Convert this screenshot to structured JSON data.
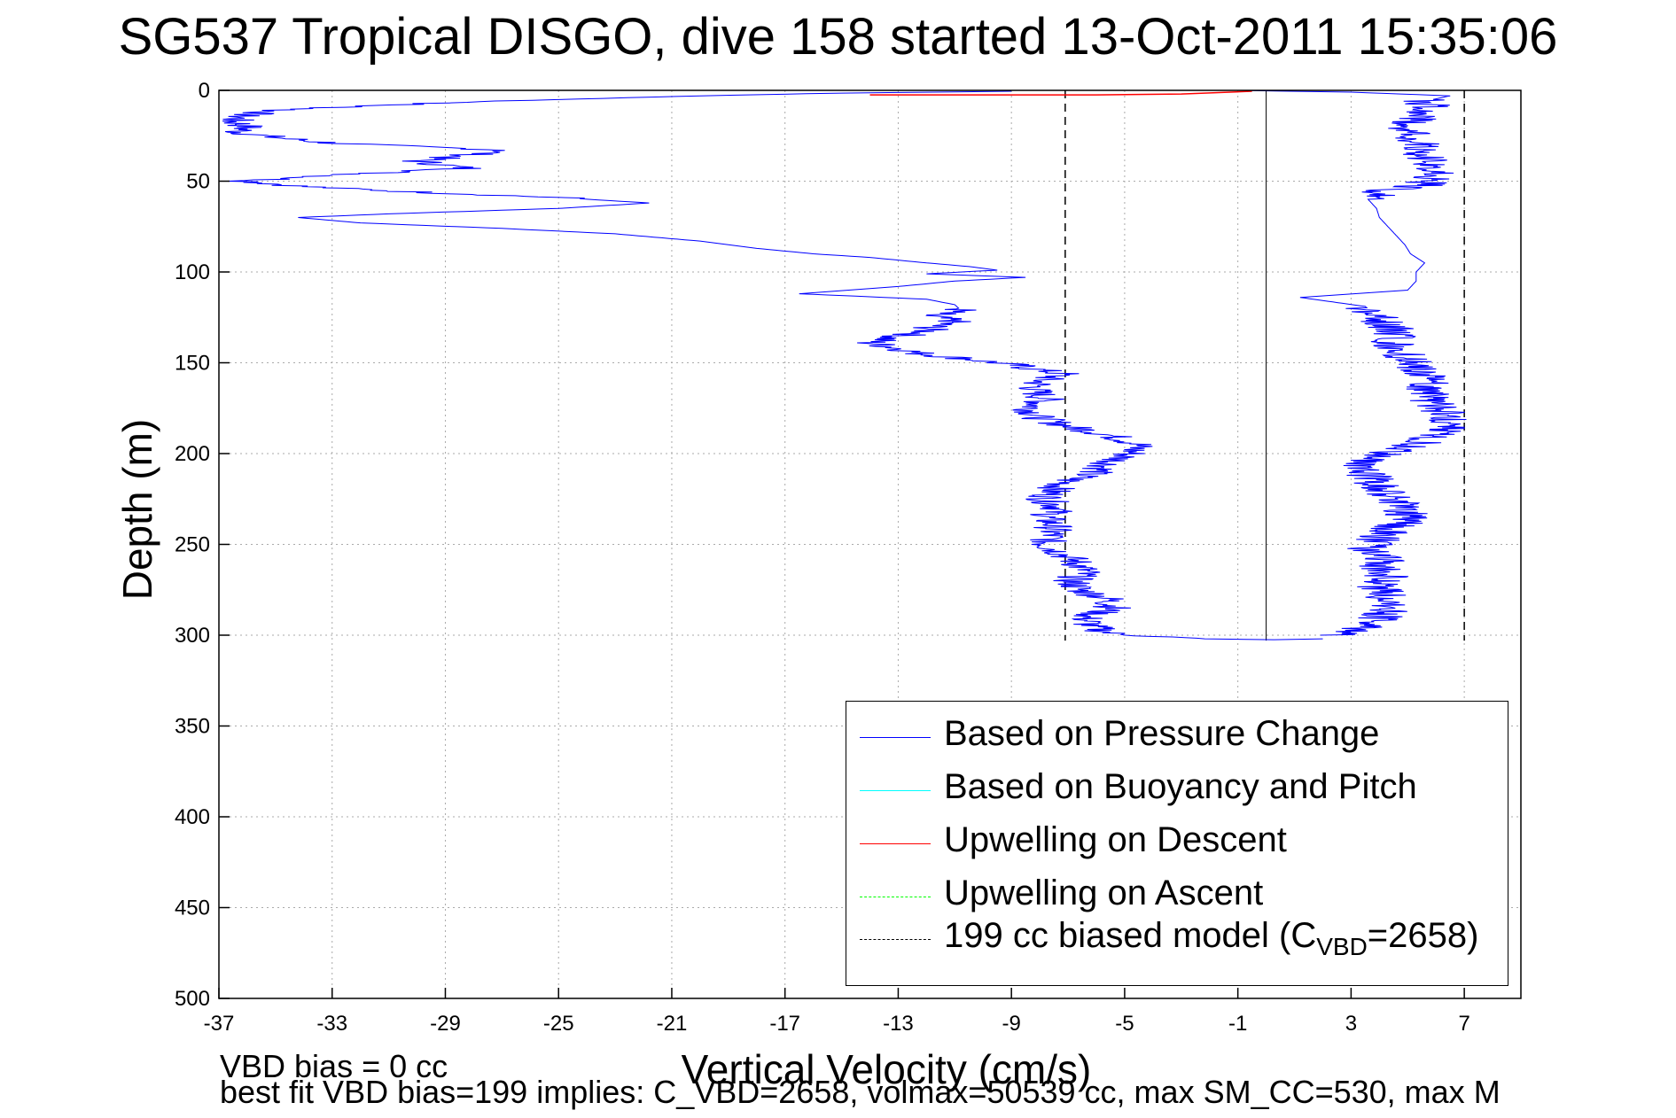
{
  "title": "SG537 Tropical DISGO, dive 158 started 13-Oct-2011 15:35:06",
  "colors": {
    "pressure": "#0000ff",
    "buoyancy": "#00ffff",
    "upwell_descent": "#ff0000",
    "upwell_ascent": "#00ff00",
    "model": "#000000",
    "grid": "#aaaaaa"
  },
  "notes": {
    "vbd_bias": "VBD bias = 0 cc",
    "best_fit": "best fit VBD bias=199 implies: C_VBD=2658, volmax=50539 cc, max SM_CC=530, max M"
  },
  "legend": {
    "items": [
      {
        "label": "Based on Pressure Change",
        "color": "#0000ff",
        "style": "solid"
      },
      {
        "label": "Based on Buoyancy and Pitch",
        "color": "#00ffff",
        "style": "solid"
      },
      {
        "label": "Upwelling on Descent",
        "color": "#ff0000",
        "style": "solid"
      },
      {
        "label": "Upwelling on Ascent",
        "color": "#00ff00",
        "style": "dashed"
      }
    ],
    "model_text": "199 cc biased model (C",
    "model_sub": "VBD",
    "model_tail": "=2658)"
  },
  "chart_data": {
    "type": "line",
    "title": "SG537 Tropical DISGO, dive 158 started 13-Oct-2011 15:35:06",
    "xlabel": "Vertical Velocity (cm/s)",
    "ylabel": "Depth (m)",
    "xlim": [
      -37,
      9
    ],
    "ylim": [
      0,
      500
    ],
    "y_reversed": true,
    "grid": true,
    "legend_position": "bottom-right",
    "xticks": [
      -37,
      -33,
      -29,
      -25,
      -21,
      -17,
      -13,
      -9,
      -5,
      -1,
      3,
      7
    ],
    "yticks": [
      0,
      50,
      100,
      150,
      200,
      250,
      300,
      350,
      400,
      450,
      500
    ],
    "reference_lines": [
      {
        "name": "199 cc biased model (C_VBD=2658) descent",
        "x": -7.1,
        "style": "dashed"
      },
      {
        "name": "199 cc biased model (C_VBD=2658) ascent",
        "x": 7.0,
        "style": "dashed"
      },
      {
        "name": "zero line",
        "x": 0,
        "style": "solid"
      }
    ],
    "series": [
      {
        "name": "Based on Pressure Change",
        "color": "#0000ff",
        "descent": [
          [
            -9,
            0.5
          ],
          [
            -15,
            1.5
          ],
          [
            -20,
            3
          ],
          [
            -26,
            5.5
          ],
          [
            -31,
            8
          ],
          [
            -35,
            11
          ],
          [
            -36.2,
            14
          ],
          [
            -36.5,
            17
          ],
          [
            -36,
            20
          ],
          [
            -36.3,
            23
          ],
          [
            -35,
            26
          ],
          [
            -33,
            29
          ],
          [
            -30,
            31
          ],
          [
            -26.7,
            33
          ],
          [
            -29,
            37
          ],
          [
            -30,
            39
          ],
          [
            -28.2,
            43
          ],
          [
            -32,
            46
          ],
          [
            -36,
            50
          ],
          [
            -34,
            53
          ],
          [
            -30,
            56
          ],
          [
            -25,
            59
          ],
          [
            -21.8,
            62
          ],
          [
            -25,
            65
          ],
          [
            -31,
            68
          ],
          [
            -34.2,
            70
          ],
          [
            -32,
            73
          ],
          [
            -27,
            76
          ],
          [
            -23,
            79
          ],
          [
            -20,
            83
          ],
          [
            -18,
            87
          ],
          [
            -16,
            90
          ],
          [
            -14,
            92
          ],
          [
            -12,
            95
          ],
          [
            -10.5,
            97
          ],
          [
            -9.5,
            99
          ],
          [
            -12,
            101
          ],
          [
            -8.5,
            103
          ],
          [
            -11,
            105
          ],
          [
            -13,
            108
          ],
          [
            -16.5,
            112
          ],
          [
            -12,
            115
          ],
          [
            -11,
            118
          ],
          [
            -10.8,
            121
          ],
          [
            -12,
            124
          ],
          [
            -11,
            127
          ],
          [
            -11.8,
            130
          ],
          [
            -12,
            133
          ],
          [
            -13.2,
            136
          ],
          [
            -14,
            139
          ],
          [
            -13,
            142
          ],
          [
            -12.2,
            145
          ],
          [
            -10.5,
            148
          ],
          [
            -9,
            151
          ],
          [
            -8,
            154
          ],
          [
            -7.2,
            156
          ],
          [
            -8,
            160
          ],
          [
            -8.2,
            165
          ],
          [
            -7.8,
            170
          ],
          [
            -8.3,
            175
          ],
          [
            -8.1,
            180
          ],
          [
            -7,
            185
          ],
          [
            -5.5,
            190
          ],
          [
            -4.5,
            195
          ],
          [
            -4.8,
            200
          ],
          [
            -5.5,
            205
          ],
          [
            -6,
            210
          ],
          [
            -7,
            215
          ],
          [
            -7.5,
            220
          ],
          [
            -7.8,
            225
          ],
          [
            -7.3,
            230
          ],
          [
            -7.8,
            235
          ],
          [
            -7.5,
            240
          ],
          [
            -7.6,
            245
          ],
          [
            -7.8,
            250
          ],
          [
            -7.2,
            255
          ],
          [
            -6.7,
            260
          ],
          [
            -6.4,
            265
          ],
          [
            -6.9,
            270
          ],
          [
            -6.6,
            275
          ],
          [
            -5.6,
            280
          ],
          [
            -5.4,
            285
          ],
          [
            -6.4,
            290
          ],
          [
            -6.2,
            295
          ],
          [
            -5.5,
            299
          ],
          [
            -2.5,
            302
          ],
          [
            0,
            302.5
          ],
          [
            2,
            302
          ]
        ],
        "ascent": [
          [
            2.5,
            300
          ],
          [
            3.2,
            297
          ],
          [
            3.8,
            293
          ],
          [
            4.2,
            288
          ],
          [
            4.5,
            283
          ],
          [
            4.2,
            278
          ],
          [
            3.9,
            273
          ],
          [
            4.3,
            268
          ],
          [
            4.0,
            263
          ],
          [
            4.2,
            258
          ],
          [
            3.6,
            253
          ],
          [
            3.9,
            248
          ],
          [
            4.3,
            243
          ],
          [
            4.8,
            238
          ],
          [
            5.0,
            233
          ],
          [
            4.7,
            228
          ],
          [
            4.4,
            223
          ],
          [
            4.0,
            218
          ],
          [
            3.7,
            213
          ],
          [
            3.3,
            208
          ],
          [
            3.5,
            203
          ],
          [
            4.8,
            198
          ],
          [
            5.6,
            193
          ],
          [
            6.1,
            188
          ],
          [
            6.5,
            183
          ],
          [
            6.4,
            178
          ],
          [
            5.9,
            173
          ],
          [
            5.8,
            168
          ],
          [
            5.7,
            163
          ],
          [
            5.6,
            158
          ],
          [
            5.4,
            153
          ],
          [
            5.1,
            148
          ],
          [
            4.6,
            143
          ],
          [
            4.4,
            138
          ],
          [
            4.6,
            133
          ],
          [
            4.2,
            128
          ],
          [
            3.8,
            123
          ],
          [
            3.5,
            119
          ],
          [
            1.2,
            114
          ],
          [
            5.0,
            110
          ],
          [
            5.3,
            105
          ],
          [
            5.3,
            100
          ],
          [
            5.6,
            95
          ],
          [
            5.1,
            90
          ],
          [
            4.9,
            85
          ],
          [
            4.6,
            80
          ],
          [
            4.3,
            75
          ],
          [
            4.0,
            70
          ],
          [
            3.9,
            65
          ],
          [
            3.6,
            60
          ],
          [
            4.0,
            56
          ],
          [
            5.6,
            52
          ],
          [
            6.0,
            47
          ],
          [
            5.9,
            42
          ],
          [
            5.5,
            37
          ],
          [
            5.5,
            32
          ],
          [
            5.2,
            27
          ],
          [
            4.9,
            22
          ],
          [
            5.0,
            18
          ],
          [
            5.4,
            14
          ],
          [
            5.8,
            10
          ],
          [
            5.6,
            6
          ],
          [
            6.5,
            3
          ],
          [
            3,
            1
          ],
          [
            -1,
            0
          ]
        ]
      },
      {
        "name": "Upwelling on Descent",
        "color": "#ff0000",
        "points": [
          [
            -14,
            2.5
          ],
          [
            -6,
            2.5
          ],
          [
            -3,
            2
          ],
          [
            -0.5,
            0.5
          ]
        ]
      }
    ]
  }
}
